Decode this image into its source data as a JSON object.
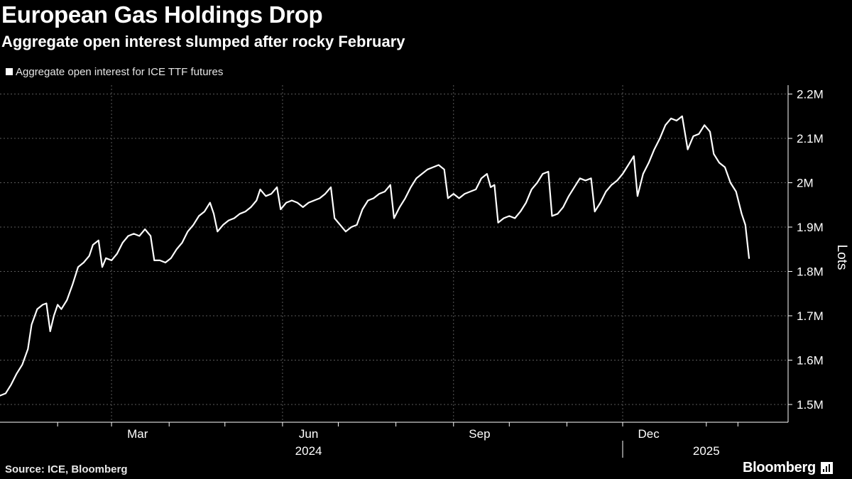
{
  "header": {
    "title": "European Gas Holdings Drop",
    "subtitle": "Aggregate open interest slumped after rocky February"
  },
  "legend": {
    "label": "Aggregate open interest for ICE TTF futures"
  },
  "footer": {
    "source": "Source: ICE, Bloomberg",
    "brand": "Bloomberg"
  },
  "colors": {
    "background": "#000000",
    "line": "#ffffff",
    "grid": "#5a5a5a",
    "text": "#ffffff"
  },
  "chart_data": {
    "type": "line",
    "title": "European Gas Holdings Drop",
    "subtitle": "Aggregate open interest slumped after rocky February",
    "ylabel": "Lots",
    "xlabel": "",
    "y_axis_position": "right",
    "grid": true,
    "legend_placement": "top-left",
    "ylim": [
      1.46,
      2.22
    ],
    "yticks": [
      {
        "value": 1.5,
        "label": "1.5M"
      },
      {
        "value": 1.6,
        "label": "1.6M"
      },
      {
        "value": 1.7,
        "label": "1.7M"
      },
      {
        "value": 1.8,
        "label": "1.8M"
      },
      {
        "value": 1.9,
        "label": "1.9M"
      },
      {
        "value": 2.0,
        "label": "2M"
      },
      {
        "value": 2.1,
        "label": "2.1M"
      },
      {
        "value": 2.2,
        "label": "2.2M"
      }
    ],
    "xlim": [
      "2024-01-01",
      "2025-02-28"
    ],
    "xticks_labeled": [
      {
        "date": "2024-03-15",
        "label": "Mar"
      },
      {
        "date": "2024-06-15",
        "label": "Jun"
      },
      {
        "date": "2024-09-15",
        "label": "Sep"
      },
      {
        "date": "2024-12-15",
        "label": "Dec"
      }
    ],
    "xticks_minor": [
      "2024-02-01",
      "2024-04-01",
      "2024-05-01",
      "2024-07-01",
      "2024-08-01",
      "2024-10-01",
      "2024-11-01",
      "2025-01-15",
      "2025-02-01"
    ],
    "xgrid": [
      "2024-03-01",
      "2024-06-01",
      "2024-09-01",
      "2024-12-01"
    ],
    "year_labels": [
      {
        "date": "2024-06-15",
        "label": "2024"
      },
      {
        "date": "2025-01-15",
        "label": "2025"
      }
    ],
    "year_divider": "2024-12-01",
    "series": [
      {
        "name": "Aggregate open interest for ICE TTF futures",
        "color": "#ffffff",
        "points": [
          [
            "2024-01-01",
            1.52
          ],
          [
            "2024-01-04",
            1.525
          ],
          [
            "2024-01-07",
            1.545
          ],
          [
            "2024-01-10",
            1.57
          ],
          [
            "2024-01-13",
            1.59
          ],
          [
            "2024-01-16",
            1.625
          ],
          [
            "2024-01-18",
            1.68
          ],
          [
            "2024-01-21",
            1.715
          ],
          [
            "2024-01-24",
            1.725
          ],
          [
            "2024-01-26",
            1.728
          ],
          [
            "2024-01-28",
            1.665
          ],
          [
            "2024-01-30",
            1.7
          ],
          [
            "2024-02-01",
            1.725
          ],
          [
            "2024-02-03",
            1.715
          ],
          [
            "2024-02-06",
            1.735
          ],
          [
            "2024-02-09",
            1.77
          ],
          [
            "2024-02-12",
            1.81
          ],
          [
            "2024-02-15",
            1.82
          ],
          [
            "2024-02-18",
            1.835
          ],
          [
            "2024-02-20",
            1.86
          ],
          [
            "2024-02-23",
            1.87
          ],
          [
            "2024-02-25",
            1.81
          ],
          [
            "2024-02-27",
            1.83
          ],
          [
            "2024-03-01",
            1.825
          ],
          [
            "2024-03-04",
            1.84
          ],
          [
            "2024-03-07",
            1.865
          ],
          [
            "2024-03-10",
            1.88
          ],
          [
            "2024-03-13",
            1.885
          ],
          [
            "2024-03-16",
            1.88
          ],
          [
            "2024-03-19",
            1.895
          ],
          [
            "2024-03-22",
            1.88
          ],
          [
            "2024-03-24",
            1.825
          ],
          [
            "2024-03-27",
            1.825
          ],
          [
            "2024-03-30",
            1.82
          ],
          [
            "2024-04-02",
            1.83
          ],
          [
            "2024-04-05",
            1.85
          ],
          [
            "2024-04-08",
            1.865
          ],
          [
            "2024-04-11",
            1.89
          ],
          [
            "2024-04-14",
            1.905
          ],
          [
            "2024-04-17",
            1.925
          ],
          [
            "2024-04-20",
            1.935
          ],
          [
            "2024-04-23",
            1.955
          ],
          [
            "2024-04-25",
            1.93
          ],
          [
            "2024-04-27",
            1.89
          ],
          [
            "2024-04-30",
            1.905
          ],
          [
            "2024-05-03",
            1.915
          ],
          [
            "2024-05-06",
            1.92
          ],
          [
            "2024-05-09",
            1.93
          ],
          [
            "2024-05-12",
            1.935
          ],
          [
            "2024-05-15",
            1.945
          ],
          [
            "2024-05-18",
            1.96
          ],
          [
            "2024-05-20",
            1.985
          ],
          [
            "2024-05-23",
            1.97
          ],
          [
            "2024-05-26",
            1.975
          ],
          [
            "2024-05-29",
            1.99
          ],
          [
            "2024-05-31",
            1.94
          ],
          [
            "2024-06-03",
            1.955
          ],
          [
            "2024-06-06",
            1.96
          ],
          [
            "2024-06-09",
            1.955
          ],
          [
            "2024-06-12",
            1.945
          ],
          [
            "2024-06-15",
            1.955
          ],
          [
            "2024-06-18",
            1.96
          ],
          [
            "2024-06-21",
            1.965
          ],
          [
            "2024-06-24",
            1.975
          ],
          [
            "2024-06-27",
            1.99
          ],
          [
            "2024-06-29",
            1.92
          ],
          [
            "2024-07-02",
            1.905
          ],
          [
            "2024-07-05",
            1.89
          ],
          [
            "2024-07-08",
            1.9
          ],
          [
            "2024-07-11",
            1.905
          ],
          [
            "2024-07-14",
            1.94
          ],
          [
            "2024-07-17",
            1.96
          ],
          [
            "2024-07-20",
            1.965
          ],
          [
            "2024-07-23",
            1.975
          ],
          [
            "2024-07-26",
            1.98
          ],
          [
            "2024-07-29",
            1.995
          ],
          [
            "2024-07-31",
            1.92
          ],
          [
            "2024-08-03",
            1.945
          ],
          [
            "2024-08-06",
            1.965
          ],
          [
            "2024-08-09",
            1.99
          ],
          [
            "2024-08-12",
            2.01
          ],
          [
            "2024-08-15",
            2.02
          ],
          [
            "2024-08-18",
            2.03
          ],
          [
            "2024-08-21",
            2.035
          ],
          [
            "2024-08-24",
            2.04
          ],
          [
            "2024-08-27",
            2.03
          ],
          [
            "2024-08-29",
            1.965
          ],
          [
            "2024-09-01",
            1.975
          ],
          [
            "2024-09-04",
            1.965
          ],
          [
            "2024-09-07",
            1.975
          ],
          [
            "2024-09-10",
            1.98
          ],
          [
            "2024-09-13",
            1.985
          ],
          [
            "2024-09-16",
            2.01
          ],
          [
            "2024-09-19",
            2.02
          ],
          [
            "2024-09-21",
            1.99
          ],
          [
            "2024-09-23",
            1.995
          ],
          [
            "2024-09-25",
            1.91
          ],
          [
            "2024-09-28",
            1.92
          ],
          [
            "2024-10-01",
            1.925
          ],
          [
            "2024-10-04",
            1.92
          ],
          [
            "2024-10-07",
            1.935
          ],
          [
            "2024-10-10",
            1.955
          ],
          [
            "2024-10-13",
            1.985
          ],
          [
            "2024-10-16",
            2.0
          ],
          [
            "2024-10-19",
            2.02
          ],
          [
            "2024-10-22",
            2.025
          ],
          [
            "2024-10-24",
            1.925
          ],
          [
            "2024-10-27",
            1.93
          ],
          [
            "2024-10-30",
            1.945
          ],
          [
            "2024-11-02",
            1.97
          ],
          [
            "2024-11-05",
            1.99
          ],
          [
            "2024-11-08",
            2.01
          ],
          [
            "2024-11-11",
            2.005
          ],
          [
            "2024-11-14",
            2.01
          ],
          [
            "2024-11-16",
            1.935
          ],
          [
            "2024-11-19",
            1.955
          ],
          [
            "2024-11-22",
            1.98
          ],
          [
            "2024-11-25",
            1.995
          ],
          [
            "2024-11-28",
            2.005
          ],
          [
            "2024-12-01",
            2.02
          ],
          [
            "2024-12-04",
            2.04
          ],
          [
            "2024-12-07",
            2.06
          ],
          [
            "2024-12-09",
            1.97
          ],
          [
            "2024-12-12",
            2.02
          ],
          [
            "2024-12-15",
            2.045
          ],
          [
            "2024-12-18",
            2.075
          ],
          [
            "2024-12-21",
            2.1
          ],
          [
            "2024-12-24",
            2.13
          ],
          [
            "2024-12-27",
            2.145
          ],
          [
            "2024-12-30",
            2.14
          ],
          [
            "2025-01-02",
            2.15
          ],
          [
            "2025-01-05",
            2.075
          ],
          [
            "2025-01-08",
            2.105
          ],
          [
            "2025-01-11",
            2.11
          ],
          [
            "2025-01-14",
            2.13
          ],
          [
            "2025-01-17",
            2.115
          ],
          [
            "2025-01-19",
            2.065
          ],
          [
            "2025-01-22",
            2.045
          ],
          [
            "2025-01-25",
            2.035
          ],
          [
            "2025-01-28",
            2.0
          ],
          [
            "2025-01-31",
            1.98
          ],
          [
            "2025-02-03",
            1.93
          ],
          [
            "2025-02-05",
            1.905
          ],
          [
            "2025-02-07",
            1.83
          ]
        ]
      }
    ]
  }
}
